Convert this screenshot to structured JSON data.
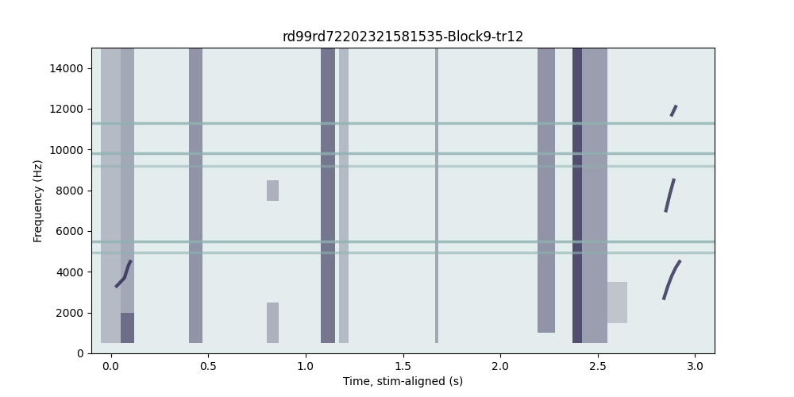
{
  "chart_data": {
    "type": "spectrogram",
    "title": "rd99rd72202321581535-Block9-tr12",
    "x_label": "Time, stim-aligned (s)",
    "y_label": "Frequency (Hz)",
    "xlim": [
      -0.1,
      3.1
    ],
    "xticks": [
      {
        "value": 0,
        "label": "0.0"
      },
      {
        "value": 0.5,
        "label": "0.5"
      },
      {
        "value": 1,
        "label": "1.0"
      },
      {
        "value": 1.5,
        "label": "1.5"
      },
      {
        "value": 2,
        "label": "2.0"
      },
      {
        "value": 2.5,
        "label": "2.5"
      },
      {
        "value": 3,
        "label": "3.0"
      }
    ],
    "ylim": [
      0,
      15000
    ],
    "yticks": [
      0,
      2000,
      4000,
      6000,
      8000,
      10000,
      12000,
      14000
    ],
    "background_color": "#e4eded",
    "color": "#2b2850",
    "line_color": "#8fb1b1",
    "bands": [
      {
        "start": -0.05,
        "end": 0.05,
        "low": 500,
        "high": 15000,
        "intensity": 0.25
      },
      {
        "start": 0.05,
        "end": 0.12,
        "low": 500,
        "high": 15000,
        "intensity": 0.35
      },
      {
        "start": 0.05,
        "end": 0.12,
        "low": 500,
        "high": 2000,
        "intensity": 0.45
      },
      {
        "start": 0.4,
        "end": 0.47,
        "low": 500,
        "high": 15000,
        "intensity": 0.45
      },
      {
        "start": 0.8,
        "end": 0.86,
        "low": 500,
        "high": 2500,
        "intensity": 0.3
      },
      {
        "start": 0.8,
        "end": 0.86,
        "low": 7500,
        "high": 8500,
        "intensity": 0.3
      },
      {
        "start": 1.08,
        "end": 1.15,
        "low": 500,
        "high": 15000,
        "intensity": 0.6
      },
      {
        "start": 1.17,
        "end": 1.22,
        "low": 500,
        "high": 15000,
        "intensity": 0.25
      },
      {
        "start": 1.665,
        "end": 1.68,
        "low": 500,
        "high": 15000,
        "intensity": 0.35
      },
      {
        "start": 2.19,
        "end": 2.28,
        "low": 1000,
        "high": 15000,
        "intensity": 0.45
      },
      {
        "start": 2.37,
        "end": 2.42,
        "low": 500,
        "high": 15000,
        "intensity": 0.8
      },
      {
        "start": 2.42,
        "end": 2.55,
        "low": 500,
        "high": 15000,
        "intensity": 0.4
      },
      {
        "start": 2.55,
        "end": 2.65,
        "low": 1500,
        "high": 3500,
        "intensity": 0.2
      }
    ],
    "lines": [
      {
        "frequency": 11300,
        "intensity": 0.8
      },
      {
        "frequency": 9800,
        "intensity": 0.8
      },
      {
        "frequency": 9200,
        "intensity": 0.5
      },
      {
        "frequency": 5500,
        "intensity": 0.8
      },
      {
        "frequency": 4950,
        "intensity": 0.6
      }
    ],
    "chirps": [
      {
        "time": [
          0.03,
          0.05,
          0.07,
          0.09,
          0.1
        ],
        "frequency": [
          3300,
          3500,
          3700,
          4300,
          4500
        ]
      },
      {
        "time": [
          2.84,
          2.86,
          2.88,
          2.9,
          2.92
        ],
        "frequency": [
          2700,
          3300,
          3800,
          4200,
          4500
        ]
      },
      {
        "time": [
          2.85,
          2.87,
          2.89
        ],
        "frequency": [
          7000,
          7800,
          8500
        ]
      },
      {
        "time": [
          2.88,
          2.9
        ],
        "frequency": [
          11700,
          12100
        ]
      }
    ]
  }
}
